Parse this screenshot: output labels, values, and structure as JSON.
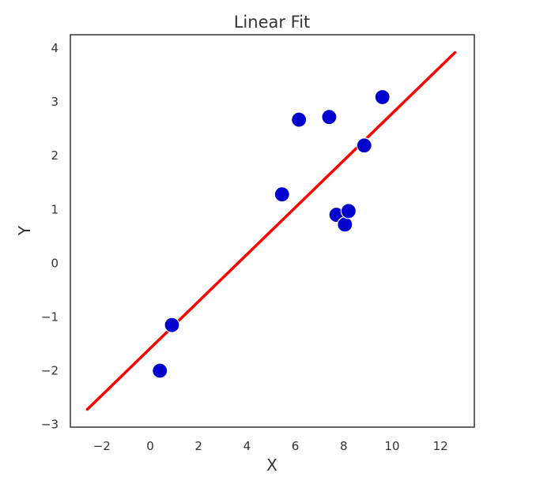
{
  "chart_data": {
    "type": "scatter",
    "title": "Linear Fit",
    "xlabel": "X",
    "ylabel": "Y",
    "xlim": [
      -3.3,
      13.4
    ],
    "ylim": [
      -3.05,
      4.25
    ],
    "xticks": [
      -2,
      0,
      2,
      4,
      6,
      8,
      10,
      12
    ],
    "xtick_labels": [
      "−2",
      "0",
      "2",
      "4",
      "6",
      "8",
      "10",
      "12"
    ],
    "yticks": [
      -3,
      -2,
      -1,
      0,
      1,
      2,
      3,
      4
    ],
    "ytick_labels": [
      "−3",
      "−2",
      "−1",
      "0",
      "1",
      "2",
      "3",
      "4"
    ],
    "grid": false,
    "series": [
      {
        "type": "scatter",
        "color": "#0000cc",
        "points": [
          {
            "x": 0.4,
            "y": -2.0
          },
          {
            "x": 0.9,
            "y": -1.15
          },
          {
            "x": 5.45,
            "y": 1.28
          },
          {
            "x": 6.15,
            "y": 2.67
          },
          {
            "x": 7.4,
            "y": 2.72
          },
          {
            "x": 7.7,
            "y": 0.9
          },
          {
            "x": 8.05,
            "y": 0.72
          },
          {
            "x": 8.2,
            "y": 0.97
          },
          {
            "x": 8.85,
            "y": 2.19
          },
          {
            "x": 9.6,
            "y": 3.09
          }
        ]
      },
      {
        "type": "line",
        "color": "#ff0000",
        "x": [
          -2.6,
          12.6
        ],
        "y": [
          -2.72,
          3.92
        ]
      }
    ]
  }
}
